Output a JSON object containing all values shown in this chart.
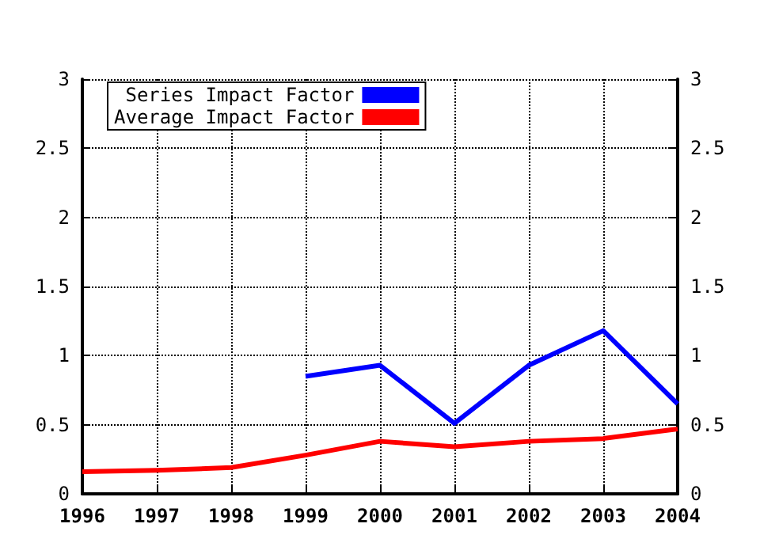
{
  "chart_data": {
    "type": "line",
    "x": [
      1996,
      1997,
      1998,
      1999,
      2000,
      2001,
      2002,
      2003,
      2004
    ],
    "series": [
      {
        "name": "Series Impact Factor",
        "color": "#0000ff",
        "values": [
          null,
          null,
          null,
          0.85,
          0.93,
          0.51,
          0.93,
          1.18,
          0.65
        ]
      },
      {
        "name": "Average Impact Factor",
        "color": "#ff0000",
        "values": [
          0.16,
          0.17,
          0.19,
          0.28,
          0.38,
          0.34,
          0.38,
          0.4,
          0.47
        ]
      }
    ],
    "xlim": [
      1996,
      2004
    ],
    "xticks": [
      1996,
      1997,
      1998,
      1999,
      2000,
      2001,
      2002,
      2003,
      2004
    ],
    "ylim": [
      0,
      3
    ],
    "yticks": [
      0,
      0.5,
      1,
      1.5,
      2,
      2.5,
      3
    ],
    "y2lim": [
      0,
      3
    ],
    "y2ticks": [
      0,
      0.5,
      1,
      1.5,
      2,
      2.5,
      3
    ],
    "grid": true,
    "legend": "top left",
    "marker": "none",
    "line_style": "solid"
  }
}
